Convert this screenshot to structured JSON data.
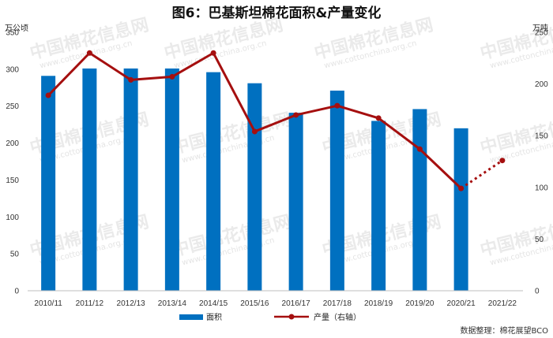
{
  "chart_data": {
    "type": "bar",
    "title": "图6：巴基斯坦棉花面积&产量变化",
    "categories": [
      "2010/11",
      "2011/12",
      "2012/13",
      "2013/14",
      "2014/15",
      "2015/16",
      "2016/17",
      "2017/18",
      "2018/19",
      "2019/20",
      "2020/21",
      "2021/22"
    ],
    "left_axis": {
      "unit": "万公顷",
      "ylim": [
        0,
        350
      ],
      "ticks": [
        0,
        50,
        100,
        150,
        200,
        250,
        300,
        350
      ]
    },
    "right_axis": {
      "unit": "万吨",
      "ylim": [
        0,
        250
      ],
      "ticks": [
        0,
        50,
        100,
        150,
        200,
        250
      ]
    },
    "series": [
      {
        "name": "面积",
        "kind": "bar",
        "axis": "left",
        "color": "#0070c0",
        "values": [
          291,
          301,
          301,
          301,
          296,
          281,
          241,
          271,
          230,
          246,
          220,
          null
        ]
      },
      {
        "name": "产量（右轴）",
        "kind": "line",
        "axis": "right",
        "color": "#a50f0f",
        "values": [
          189,
          230,
          204,
          207,
          230,
          154,
          170,
          179,
          167,
          137,
          99,
          126
        ],
        "dashed_from_index": 10
      }
    ],
    "grid": false,
    "legend": "bottom-center",
    "watermark": {
      "logo_text": "中国棉花信息网",
      "url_text": "www.cottonchina.org.cn"
    },
    "source_note": "数据整理：棉花展望BCO"
  }
}
